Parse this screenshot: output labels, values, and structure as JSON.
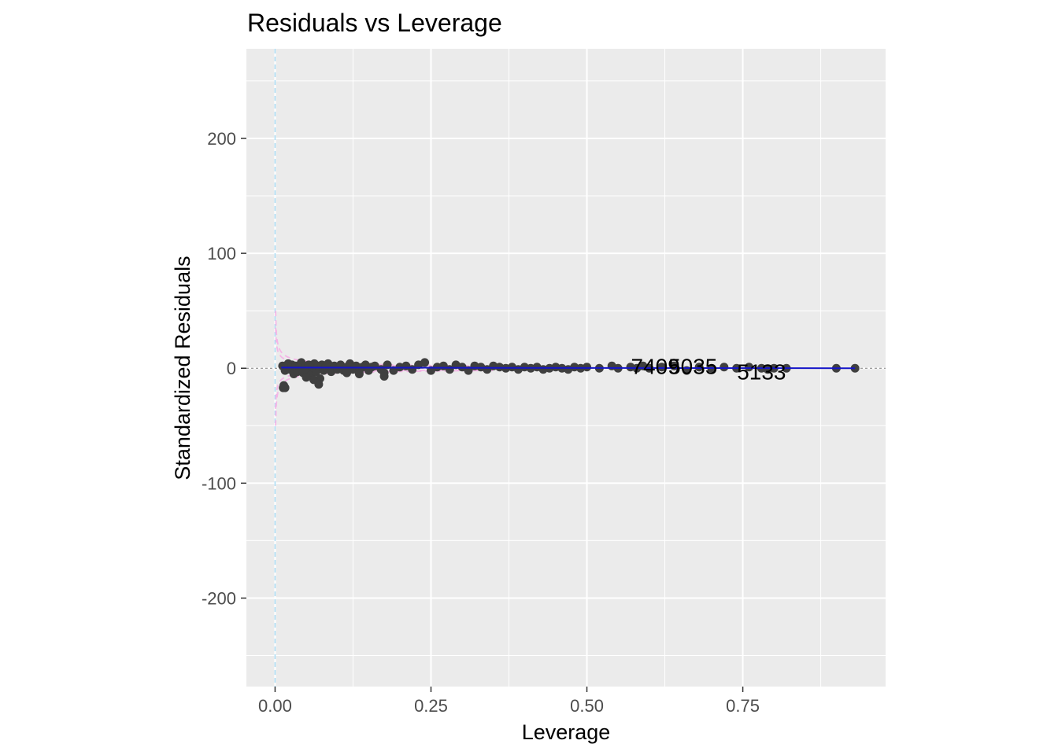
{
  "chart_data": {
    "type": "scatter",
    "title": "Residuals vs Leverage",
    "xlabel": "Leverage",
    "ylabel": "Standardized Residuals",
    "xlim": [
      -0.046,
      0.979
    ],
    "ylim": [
      -277,
      278
    ],
    "xticks": [
      0.0,
      0.25,
      0.5,
      0.75
    ],
    "xtick_labels": [
      "0.00",
      "0.25",
      "0.50",
      "0.75"
    ],
    "yticks": [
      -200,
      -100,
      0,
      100,
      200
    ],
    "ytick_labels": [
      "-200",
      "-100",
      "0",
      "100",
      "200"
    ],
    "grid": true,
    "legend": "none",
    "colors": {
      "panel": "#ebebeb",
      "grid": "#ffffff",
      "points": "#3f3f3f",
      "smooth": "#1515c8",
      "cooks": "#f4b6e6",
      "vline": "#a9dcf5",
      "hline": "#7f7f7f"
    },
    "points": [
      {
        "x": 0.012,
        "y": 2
      },
      {
        "x": 0.016,
        "y": -2
      },
      {
        "x": 0.018,
        "y": 1
      },
      {
        "x": 0.021,
        "y": 4
      },
      {
        "x": 0.024,
        "y": -1
      },
      {
        "x": 0.027,
        "y": 3
      },
      {
        "x": 0.03,
        "y": -5
      },
      {
        "x": 0.033,
        "y": 2
      },
      {
        "x": 0.036,
        "y": -3
      },
      {
        "x": 0.039,
        "y": 1
      },
      {
        "x": 0.042,
        "y": 5
      },
      {
        "x": 0.045,
        "y": -4
      },
      {
        "x": 0.048,
        "y": 2
      },
      {
        "x": 0.051,
        "y": -2
      },
      {
        "x": 0.054,
        "y": 3
      },
      {
        "x": 0.057,
        "y": -6
      },
      {
        "x": 0.06,
        "y": 1
      },
      {
        "x": 0.063,
        "y": 4
      },
      {
        "x": 0.066,
        "y": -3
      },
      {
        "x": 0.069,
        "y": 2
      },
      {
        "x": 0.072,
        "y": -9
      },
      {
        "x": 0.075,
        "y": 3
      },
      {
        "x": 0.078,
        "y": -2
      },
      {
        "x": 0.081,
        "y": 1
      },
      {
        "x": 0.085,
        "y": 4
      },
      {
        "x": 0.09,
        "y": -3
      },
      {
        "x": 0.095,
        "y": 2
      },
      {
        "x": 0.1,
        "y": -1
      },
      {
        "x": 0.105,
        "y": 3
      },
      {
        "x": 0.11,
        "y": -2
      },
      {
        "x": 0.115,
        "y": 1
      },
      {
        "x": 0.12,
        "y": 4
      },
      {
        "x": 0.125,
        "y": -1
      },
      {
        "x": 0.13,
        "y": 2
      },
      {
        "x": 0.135,
        "y": -3
      },
      {
        "x": 0.14,
        "y": 1
      },
      {
        "x": 0.145,
        "y": 3
      },
      {
        "x": 0.15,
        "y": -2
      },
      {
        "x": 0.155,
        "y": 1
      },
      {
        "x": 0.16,
        "y": 2
      },
      {
        "x": 0.17,
        "y": -1
      },
      {
        "x": 0.175,
        "y": -4
      },
      {
        "x": 0.18,
        "y": 3
      },
      {
        "x": 0.19,
        "y": -2
      },
      {
        "x": 0.2,
        "y": 1
      },
      {
        "x": 0.21,
        "y": 2
      },
      {
        "x": 0.22,
        "y": -1
      },
      {
        "x": 0.23,
        "y": 3
      },
      {
        "x": 0.24,
        "y": 5
      },
      {
        "x": 0.25,
        "y": -2
      },
      {
        "x": 0.26,
        "y": 1
      },
      {
        "x": 0.27,
        "y": 2
      },
      {
        "x": 0.28,
        "y": -1
      },
      {
        "x": 0.29,
        "y": 3
      },
      {
        "x": 0.3,
        "y": 1
      },
      {
        "x": 0.31,
        "y": -2
      },
      {
        "x": 0.32,
        "y": 2
      },
      {
        "x": 0.33,
        "y": 1
      },
      {
        "x": 0.34,
        "y": -1
      },
      {
        "x": 0.35,
        "y": 2
      },
      {
        "x": 0.36,
        "y": 1
      },
      {
        "x": 0.37,
        "y": 0
      },
      {
        "x": 0.38,
        "y": 1
      },
      {
        "x": 0.39,
        "y": -1
      },
      {
        "x": 0.4,
        "y": 1
      },
      {
        "x": 0.41,
        "y": 0
      },
      {
        "x": 0.42,
        "y": 1
      },
      {
        "x": 0.43,
        "y": -1
      },
      {
        "x": 0.44,
        "y": 0
      },
      {
        "x": 0.45,
        "y": 1
      },
      {
        "x": 0.46,
        "y": 0
      },
      {
        "x": 0.47,
        "y": -1
      },
      {
        "x": 0.48,
        "y": 1
      },
      {
        "x": 0.49,
        "y": 0
      },
      {
        "x": 0.5,
        "y": 1
      },
      {
        "x": 0.52,
        "y": 0
      },
      {
        "x": 0.54,
        "y": 2
      },
      {
        "x": 0.55,
        "y": 0
      },
      {
        "x": 0.57,
        "y": 1
      },
      {
        "x": 0.58,
        "y": 0
      },
      {
        "x": 0.59,
        "y": 2
      },
      {
        "x": 0.6,
        "y": 0
      },
      {
        "x": 0.62,
        "y": 1
      },
      {
        "x": 0.64,
        "y": 2
      },
      {
        "x": 0.66,
        "y": -2
      },
      {
        "x": 0.68,
        "y": 1
      },
      {
        "x": 0.7,
        "y": 0
      },
      {
        "x": 0.72,
        "y": 1
      },
      {
        "x": 0.74,
        "y": 0
      },
      {
        "x": 0.76,
        "y": 1
      },
      {
        "x": 0.78,
        "y": 0
      },
      {
        "x": 0.79,
        "y": -1
      },
      {
        "x": 0.8,
        "y": 0
      },
      {
        "x": 0.82,
        "y": 0
      },
      {
        "x": 0.9,
        "y": 0
      },
      {
        "x": 0.93,
        "y": 0
      },
      {
        "x": 0.013,
        "y": -17
      },
      {
        "x": 0.016,
        "y": -17
      },
      {
        "x": 0.014,
        "y": -15
      },
      {
        "x": 0.07,
        "y": -14
      },
      {
        "x": 0.062,
        "y": -10
      },
      {
        "x": 0.05,
        "y": -8
      },
      {
        "x": 0.115,
        "y": -4
      },
      {
        "x": 0.135,
        "y": -5
      },
      {
        "x": 0.175,
        "y": -7
      }
    ],
    "labels": [
      {
        "text": "7409",
        "x": 0.61,
        "y": 2
      },
      {
        "text": "5035",
        "x": 0.67,
        "y": 2
      },
      {
        "text": "5133",
        "x": 0.78,
        "y": -3
      }
    ],
    "cooks_contours": [
      0.5,
      1
    ]
  }
}
